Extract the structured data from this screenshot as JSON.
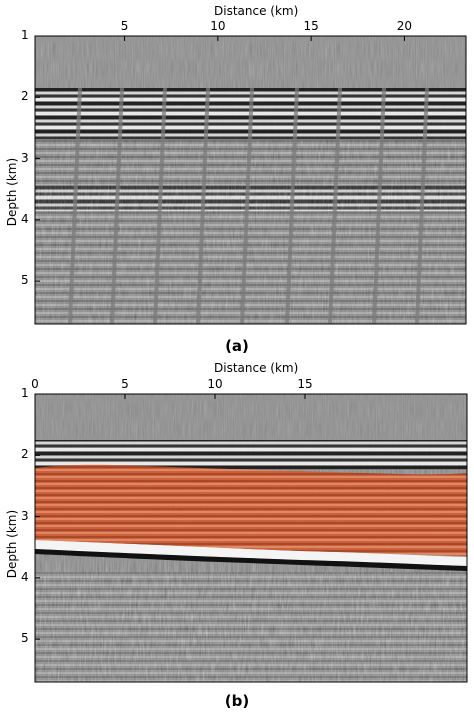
{
  "panels": [
    {
      "caption": "(a)",
      "xlabel": "Distance (km)",
      "ylabel": "Depth (km)",
      "x_ticks": [
        "5",
        "10",
        "15",
        "20"
      ],
      "y_ticks": [
        "1",
        "2",
        "3",
        "4",
        "5"
      ],
      "x_tick_values": [
        5,
        10,
        15,
        20
      ],
      "y_tick_values": [
        1,
        2,
        3,
        4,
        5
      ],
      "x_range": [
        0.2,
        23.3
      ],
      "y_range": [
        1,
        5.7
      ],
      "image": "seismic migrated image with vertical stripe artifacts",
      "highlight": null
    },
    {
      "caption": "(b)",
      "xlabel": "Distance (km)",
      "ylabel": "Depth (km)",
      "x_ticks": [
        "0",
        "5",
        "10",
        "15"
      ],
      "y_ticks": [
        "1",
        "2",
        "3",
        "4",
        "5"
      ],
      "x_tick_values": [
        0,
        5,
        10,
        15
      ],
      "y_tick_values": [
        1,
        2,
        3,
        4,
        5
      ],
      "x_range": [
        0,
        24
      ],
      "y_range": [
        1,
        5.7
      ],
      "image": "seismic migrated image",
      "highlight": {
        "color": "#d96a43",
        "depth_top_km": 2.25,
        "depth_bottom_km": 3.55
      }
    }
  ]
}
